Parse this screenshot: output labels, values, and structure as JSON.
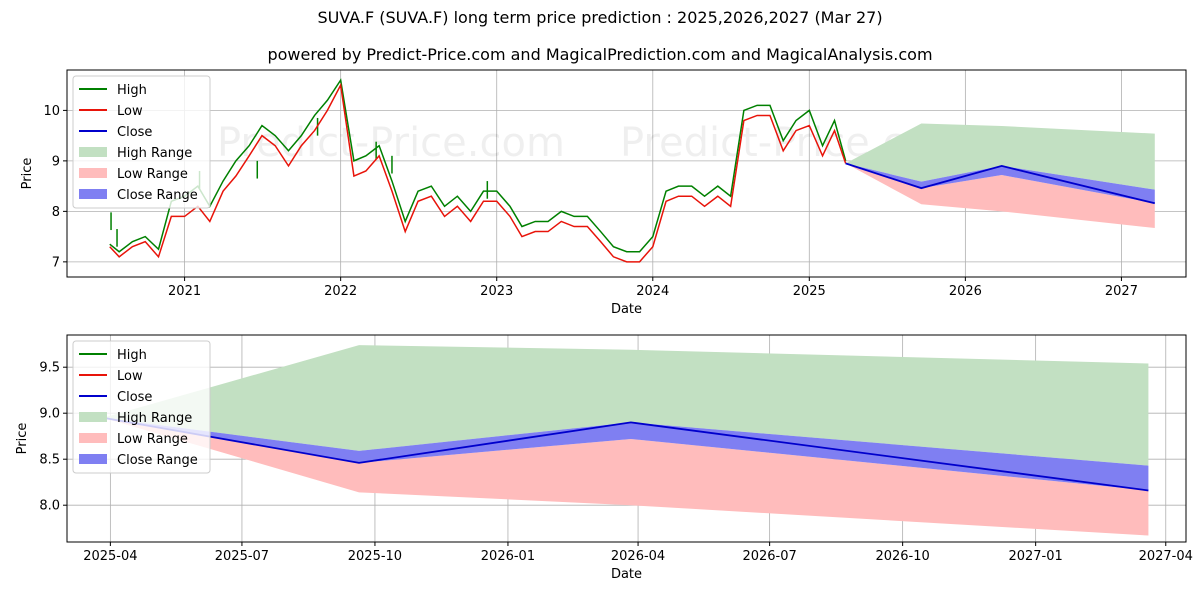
{
  "title": "SUVA.F (SUVA.F) long term price prediction : 2025,2026,2027 (Mar 27)",
  "subtitle": "powered by Predict-Price.com and MagicalPrediction.com and MagicalAnalysis.com",
  "watermark": "Predict-Price.com",
  "colors": {
    "high": "#008000",
    "low": "#e8140a",
    "close": "#0000cc",
    "high_range": "#c2e0c2",
    "low_range": "#ffbcbc",
    "close_range": "#7f7ff2",
    "grid": "#b0b0b0"
  },
  "legend_labels": [
    "High",
    "Low",
    "Close",
    "High Range",
    "Low Range",
    "Close Range"
  ],
  "chart_data": [
    {
      "type": "line",
      "name": "full-history",
      "xlabel": "Date",
      "ylabel": "Price",
      "xlim": [
        "2020-04-01",
        "2027-06-01"
      ],
      "ylim": [
        6.7,
        10.8
      ],
      "x_ticks": [
        {
          "date": "2021-01-01",
          "label": "2021"
        },
        {
          "date": "2022-01-01",
          "label": "2022"
        },
        {
          "date": "2023-01-01",
          "label": "2023"
        },
        {
          "date": "2024-01-01",
          "label": "2024"
        },
        {
          "date": "2025-01-01",
          "label": "2025"
        },
        {
          "date": "2026-01-01",
          "label": "2026"
        },
        {
          "date": "2027-01-01",
          "label": "2027"
        }
      ],
      "y_ticks": [
        7,
        8,
        9,
        10
      ],
      "grid": true,
      "legend": "upper-left",
      "history": {
        "dates": [
          "2020-07-10",
          "2020-08-01",
          "2020-09-01",
          "2020-10-01",
          "2020-11-01",
          "2020-12-01",
          "2021-01-01",
          "2021-02-01",
          "2021-03-01",
          "2021-04-01",
          "2021-05-01",
          "2021-06-01",
          "2021-07-01",
          "2021-08-01",
          "2021-09-01",
          "2021-10-01",
          "2021-11-01",
          "2021-12-01",
          "2022-01-01",
          "2022-02-01",
          "2022-03-01",
          "2022-04-01",
          "2022-05-01",
          "2022-06-01",
          "2022-07-01",
          "2022-08-01",
          "2022-09-01",
          "2022-10-01",
          "2022-11-01",
          "2022-12-01",
          "2023-01-01",
          "2023-02-01",
          "2023-03-01",
          "2023-04-01",
          "2023-05-01",
          "2023-06-01",
          "2023-07-01",
          "2023-08-01",
          "2023-09-01",
          "2023-10-01",
          "2023-11-01",
          "2023-12-01",
          "2024-01-01",
          "2024-02-01",
          "2024-03-01",
          "2024-04-01",
          "2024-05-01",
          "2024-06-01",
          "2024-07-01",
          "2024-08-01",
          "2024-09-01",
          "2024-10-01",
          "2024-11-01",
          "2024-12-01",
          "2025-01-01",
          "2025-02-01",
          "2025-03-01",
          "2025-03-27"
        ],
        "low": [
          7.3,
          7.1,
          7.3,
          7.4,
          7.1,
          7.9,
          7.9,
          8.1,
          7.8,
          8.4,
          8.7,
          9.1,
          9.5,
          9.3,
          8.9,
          9.3,
          9.6,
          10.0,
          10.5,
          8.7,
          8.8,
          9.1,
          8.4,
          7.6,
          8.2,
          8.3,
          7.9,
          8.1,
          7.8,
          8.2,
          8.2,
          7.9,
          7.5,
          7.6,
          7.6,
          7.8,
          7.7,
          7.7,
          7.4,
          7.1,
          7.0,
          7.0,
          7.3,
          8.2,
          8.3,
          8.3,
          8.1,
          8.3,
          8.1,
          9.8,
          9.9,
          9.9,
          9.2,
          9.6,
          9.7,
          9.1,
          9.6,
          8.95
        ],
        "high": [
          7.35,
          7.2,
          7.4,
          7.5,
          7.25,
          8.2,
          8.3,
          8.5,
          8.1,
          8.6,
          9.0,
          9.3,
          9.7,
          9.5,
          9.2,
          9.5,
          9.9,
          10.2,
          10.6,
          9.0,
          9.1,
          9.3,
          8.6,
          7.8,
          8.4,
          8.5,
          8.1,
          8.3,
          8.0,
          8.4,
          8.4,
          8.1,
          7.7,
          7.8,
          7.8,
          8.0,
          7.9,
          7.9,
          7.6,
          7.3,
          7.2,
          7.2,
          7.5,
          8.4,
          8.5,
          8.5,
          8.3,
          8.5,
          8.3,
          10.0,
          10.1,
          10.1,
          9.4,
          9.8,
          10.0,
          9.3,
          9.8,
          9.0
        ]
      },
      "high_spikes": [
        {
          "date": "2020-07-13",
          "value": 7.98
        },
        {
          "date": "2020-07-27",
          "value": 7.65
        },
        {
          "date": "2021-02-05",
          "value": 8.8
        },
        {
          "date": "2021-06-20",
          "value": 9.0
        },
        {
          "date": "2021-11-08",
          "value": 9.85
        },
        {
          "date": "2022-03-25",
          "value": 9.38
        },
        {
          "date": "2022-05-01",
          "value": 9.1
        },
        {
          "date": "2022-12-10",
          "value": 8.6
        }
      ],
      "forecast": {
        "dates": [
          "2025-03-27",
          "2025-09-20",
          "2026-03-27",
          "2027-03-20"
        ],
        "close": [
          8.95,
          8.46,
          8.9,
          8.16
        ],
        "high_range_top": [
          8.95,
          9.74,
          9.69,
          9.54
        ],
        "close_range_top": [
          8.95,
          8.59,
          8.9,
          8.43
        ],
        "close_range_bottom": [
          8.95,
          8.46,
          8.72,
          8.16
        ],
        "low_range_bottom": [
          8.95,
          8.14,
          8.0,
          7.67
        ]
      }
    },
    {
      "type": "line",
      "name": "forecast-zoom",
      "xlabel": "Date",
      "ylabel": "Price",
      "xlim": [
        "2025-03-02",
        "2027-04-15"
      ],
      "ylim": [
        7.6,
        9.85
      ],
      "x_ticks": [
        {
          "date": "2025-04-01",
          "label": "2025-04"
        },
        {
          "date": "2025-07-01",
          "label": "2025-07"
        },
        {
          "date": "2025-10-01",
          "label": "2025-10"
        },
        {
          "date": "2026-01-01",
          "label": "2026-01"
        },
        {
          "date": "2026-04-01",
          "label": "2026-04"
        },
        {
          "date": "2026-07-01",
          "label": "2026-07"
        },
        {
          "date": "2026-10-01",
          "label": "2026-10"
        },
        {
          "date": "2027-01-01",
          "label": "2027-01"
        },
        {
          "date": "2027-04-01",
          "label": "2027-04"
        }
      ],
      "y_ticks": [
        8.0,
        8.5,
        9.0,
        9.5
      ],
      "grid": true,
      "legend": "upper-left"
    }
  ]
}
